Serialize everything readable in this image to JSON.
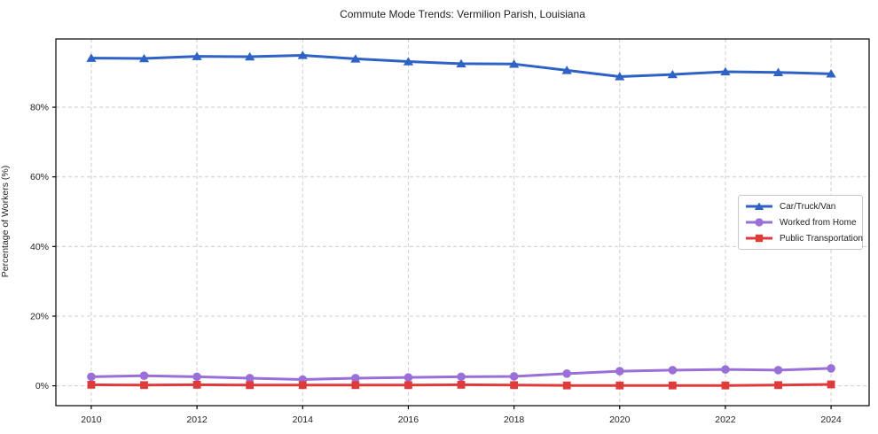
{
  "chart_data": {
    "type": "line",
    "title": "Commute Mode Trends: Vermilion Parish, Louisiana",
    "xlabel": "",
    "ylabel": "Percentage of Workers (%)",
    "x": [
      2010,
      2011,
      2012,
      2013,
      2014,
      2015,
      2016,
      2017,
      2018,
      2019,
      2020,
      2021,
      2022,
      2023,
      2024
    ],
    "xticks": [
      2010,
      2012,
      2014,
      2016,
      2018,
      2020,
      2022,
      2024
    ],
    "yticks": [
      0,
      20,
      40,
      60,
      80
    ],
    "ytick_labels": [
      "0%",
      "20%",
      "40%",
      "60%",
      "80%"
    ],
    "xlim": [
      2009.33,
      2024.72
    ],
    "ylim": [
      -5.7,
      99.6
    ],
    "grid": true,
    "grid_style": "dashed",
    "legend_position": "center-right",
    "colors": {
      "grid": "#cdcdcd",
      "spine": "#000000",
      "text": "#1f1f1f"
    },
    "series": [
      {
        "name": "Car/Truck/Van",
        "color": "#2e62c4",
        "marker": "triangle",
        "values": [
          94.1,
          94.0,
          94.6,
          94.5,
          94.9,
          93.9,
          93.1,
          92.5,
          92.4,
          90.6,
          88.8,
          89.4,
          90.2,
          90.0,
          89.6
        ]
      },
      {
        "name": "Worked from Home",
        "color": "#9a6fd8",
        "marker": "circle",
        "values": [
          2.6,
          2.9,
          2.6,
          2.2,
          1.8,
          2.2,
          2.4,
          2.6,
          2.7,
          3.5,
          4.2,
          4.5,
          4.7,
          4.5,
          5.0
        ]
      },
      {
        "name": "Public Transportation",
        "color": "#e03b3b",
        "marker": "square",
        "values": [
          0.3,
          0.2,
          0.3,
          0.2,
          0.2,
          0.2,
          0.2,
          0.3,
          0.2,
          0.1,
          0.1,
          0.1,
          0.1,
          0.2,
          0.4
        ]
      }
    ]
  }
}
